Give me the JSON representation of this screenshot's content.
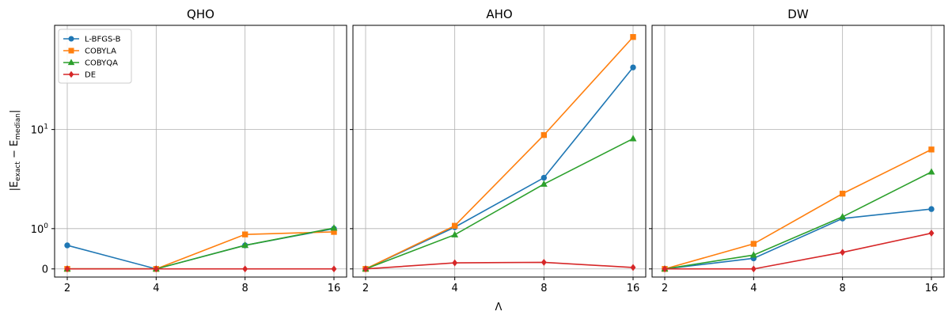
{
  "chart_data": {
    "type": "line",
    "xlabel": "Λ",
    "ylabel": "|E_exact − E_median|",
    "ylabel_parts": {
      "base": "|E",
      "sub1": "exact",
      "mid": " − E",
      "sub2": "median",
      "end": "|"
    },
    "x": [
      2,
      4,
      8,
      16
    ],
    "x_tick_labels": [
      "2",
      "4",
      "8",
      "16"
    ],
    "y_scale": "symlog",
    "y_ticks": [
      0,
      1,
      10
    ],
    "y_tick_labels": {
      "zero": "0",
      "one": {
        "base": "10",
        "exp": "0"
      },
      "ten": {
        "base": "10",
        "exp": "1"
      }
    },
    "grid": true,
    "legend_location": "upper-left",
    "legend_panel": "QHO",
    "series_styles": [
      {
        "name": "L-BFGS-B",
        "color": "#1f77b4",
        "marker": "circle"
      },
      {
        "name": "COBYLA",
        "color": "#ff7f0e",
        "marker": "square"
      },
      {
        "name": "COBYQA",
        "color": "#2ca02c",
        "marker": "triangle"
      },
      {
        "name": "DE",
        "color": "#d62728",
        "marker": "diamond"
      }
    ],
    "panels": [
      {
        "title": "QHO",
        "ylim": [
          -0.15,
          65
        ],
        "series": [
          {
            "name": "L-BFGS-B",
            "values": [
              0.5,
              0.0,
              0.5,
              1.0
            ]
          },
          {
            "name": "COBYLA",
            "values": [
              0.0,
              0.0,
              0.81,
              0.89
            ]
          },
          {
            "name": "COBYQA",
            "values": [
              0.0,
              0.0,
              0.5,
              1.02
            ]
          },
          {
            "name": "DE",
            "values": [
              0.0,
              0.0,
              0.0,
              0.0
            ]
          }
        ]
      },
      {
        "title": "AHO",
        "ylim": [
          -0.15,
          65
        ],
        "series": [
          {
            "name": "L-BFGS-B",
            "values": [
              0.0,
              1.05,
              3.8,
              31.0
            ]
          },
          {
            "name": "COBYLA",
            "values": [
              0.0,
              1.1,
              9.0,
              53.0
            ]
          },
          {
            "name": "COBYQA",
            "values": [
              0.0,
              0.8,
              3.3,
              8.4
            ]
          },
          {
            "name": "DE",
            "values": [
              0.0,
              0.11,
              0.12,
              0.025
            ]
          }
        ]
      },
      {
        "title": "DW",
        "ylim": [
          -0.15,
          65
        ],
        "series": [
          {
            "name": "L-BFGS-B",
            "values": [
              0.0,
              0.2,
              1.38,
              1.8
            ]
          },
          {
            "name": "COBYLA",
            "values": [
              0.0,
              0.54,
              2.65,
              6.8
            ]
          },
          {
            "name": "COBYQA",
            "values": [
              0.0,
              0.27,
              1.45,
              4.3
            ]
          },
          {
            "name": "DE",
            "values": [
              0.0,
              0.0,
              0.33,
              0.85
            ]
          }
        ]
      }
    ]
  }
}
